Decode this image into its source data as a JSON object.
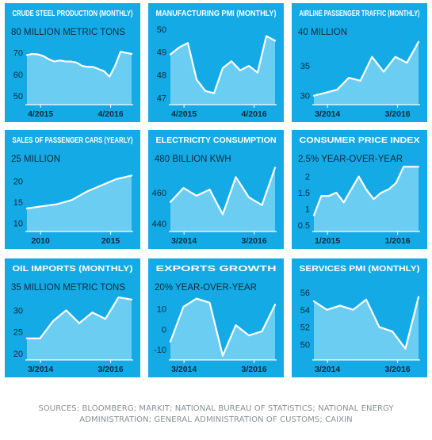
{
  "sources": [
    "SOURCES: BLOOMBERG; MARKIT; NATIONAL BUREAU OF STATISTICS; NATIONAL ENERGY",
    "ADMINISTRATION; GENERAL ADMINISTRATION OF CUSTOMS; CAIXIN"
  ],
  "colors": {
    "panel_bg": "#14aae6",
    "area_fill": "#6bcdf2",
    "line": "#ffffff",
    "text": "#0f2a3b",
    "title": "#ffffff"
  },
  "chart_data": [
    {
      "type": "area",
      "title": "CRUDE STEEL PRODUCTION (MONTHLY)",
      "unit_label": "80 MILLION METRIC TONS",
      "yticks": [
        70,
        60,
        50
      ],
      "ylim": [
        46,
        82
      ],
      "xticks": [
        {
          "label": "4/2015",
          "x": 0.13
        },
        {
          "label": "4/2016",
          "x": 0.8
        }
      ],
      "values": [
        69,
        69.5,
        69.3,
        68.5,
        67,
        66,
        66.5,
        66,
        66,
        65.5,
        64,
        63.5,
        63.5,
        62.5,
        61.5,
        59,
        64,
        70.5,
        70,
        69.5
      ]
    },
    {
      "type": "area",
      "title": "MANUFACTURING PMI (MONTHLY)",
      "unit_label": "",
      "yticks": [
        50,
        49,
        48,
        47
      ],
      "ylim": [
        46.7,
        50.1
      ],
      "xticks": [
        {
          "label": "4/2015",
          "x": 0.13
        },
        {
          "label": "4/2016",
          "x": 0.8
        }
      ],
      "values": [
        48.9,
        49.2,
        49.4,
        47.8,
        47.3,
        47.2,
        48.3,
        48.6,
        48.2,
        48.4,
        48.1,
        49.7,
        49.5
      ]
    },
    {
      "type": "area",
      "title": "AIRLINE PASSENGER TRAFFIC (MONTHLY)",
      "unit_label": "40 MILLION",
      "yticks": [
        35,
        30
      ],
      "ylim": [
        28.5,
        41.5
      ],
      "xticks": [
        {
          "label": "3/2014",
          "x": 0.13
        },
        {
          "label": "3/2016",
          "x": 0.8
        }
      ],
      "values": [
        30,
        30.5,
        31,
        33,
        32.5,
        36.5,
        34,
        36.5,
        35.5,
        39
      ]
    },
    {
      "type": "area",
      "title": "SALES OF PASSENGER CARS (YEARLY)",
      "unit_label": "25 MILLION",
      "yticks": [
        20,
        15,
        10
      ],
      "ylim": [
        8,
        26.5
      ],
      "xticks": [
        {
          "label": "2010",
          "x": 0.13
        },
        {
          "label": "2015",
          "x": 0.8
        }
      ],
      "values": [
        13.5,
        14,
        14.5,
        15.5,
        17.5,
        19,
        20.5,
        21.3
      ]
    },
    {
      "type": "area",
      "title": "ELECTRICITY CONSUMPTION",
      "unit_label": "480 BILLION KWH",
      "yticks": [
        460,
        440
      ],
      "ylim": [
        435,
        485
      ],
      "xticks": [
        {
          "label": "3/2014",
          "x": 0.13
        },
        {
          "label": "3/2016",
          "x": 0.8
        }
      ],
      "values": [
        454,
        463,
        458,
        462,
        446,
        470,
        457,
        452,
        476
      ]
    },
    {
      "type": "area",
      "title": "CONSUMER PRICE INDEX",
      "unit_label": "2.5% YEAR-OVER-YEAR",
      "yticks": [
        2.0,
        1.5,
        1.0,
        0.5
      ],
      "ylim": [
        0.3,
        2.7
      ],
      "xticks": [
        {
          "label": "1/2015",
          "x": 0.13
        },
        {
          "label": "1/2016",
          "x": 0.8
        }
      ],
      "values": [
        0.8,
        1.4,
        1.4,
        1.5,
        1.2,
        1.6,
        2.0,
        1.6,
        1.3,
        1.5,
        1.6,
        1.8,
        2.3,
        2.3,
        2.3
      ]
    },
    {
      "type": "area",
      "title": "OIL IMPORTS (MONTHLY)",
      "unit_label": "35 MILLION METRIC TONS",
      "yticks": [
        30,
        25,
        20
      ],
      "ylim": [
        18.5,
        36.5
      ],
      "xticks": [
        {
          "label": "3/2014",
          "x": 0.13
        },
        {
          "label": "3/2016",
          "x": 0.8
        }
      ],
      "values": [
        23.5,
        23.5,
        27.5,
        30,
        27,
        29.5,
        28,
        33,
        32.5
      ]
    },
    {
      "type": "area",
      "title": "EXPORTS GROWTH",
      "unit_label": "20% YEAR-OVER-YEAR",
      "yticks": [
        10,
        0,
        -10
      ],
      "ylim": [
        -15,
        23
      ],
      "xticks": [
        {
          "label": "3/2014",
          "x": 0.13
        },
        {
          "label": "3/2016",
          "x": 0.8
        }
      ],
      "values": [
        -6,
        11,
        15,
        13,
        -13,
        2,
        -3,
        -1,
        12
      ]
    },
    {
      "type": "area",
      "title": "SERVICES PMI (MONTHLY)",
      "unit_label": "",
      "yticks": [
        56,
        54,
        52,
        50
      ],
      "ylim": [
        48.2,
        57.2
      ],
      "xticks": [
        {
          "label": "3/2014",
          "x": 0.13
        },
        {
          "label": "3/2016",
          "x": 0.8
        }
      ],
      "values": [
        55,
        54,
        54.5,
        54,
        55.2,
        52,
        51.5,
        49.5,
        55.5
      ]
    }
  ]
}
